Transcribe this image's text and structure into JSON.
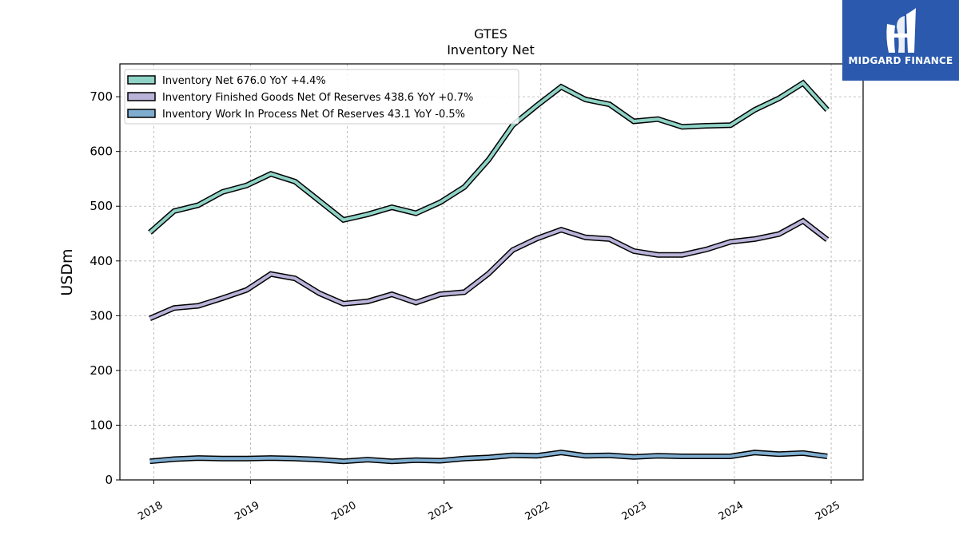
{
  "brand": {
    "name": "MIDGARD FINANCE"
  },
  "chart_data": {
    "type": "line",
    "title": "GTES",
    "subtitle": "Inventory Net",
    "xlabel": "",
    "ylabel": "USDm",
    "ylim": [
      0,
      760
    ],
    "yticks": [
      0,
      100,
      200,
      300,
      400,
      500,
      600,
      700
    ],
    "xlim": [
      2017.65,
      2025.33
    ],
    "xticks": [
      "2018",
      "2019",
      "2020",
      "2021",
      "2022",
      "2023",
      "2024",
      "2025"
    ],
    "grid": true,
    "legend_position": "top-left",
    "x": [
      2017.96,
      2018.21,
      2018.46,
      2018.71,
      2018.96,
      2019.21,
      2019.46,
      2019.71,
      2019.96,
      2020.21,
      2020.46,
      2020.71,
      2020.96,
      2021.21,
      2021.46,
      2021.71,
      2021.96,
      2022.21,
      2022.46,
      2022.71,
      2022.96,
      2023.21,
      2023.46,
      2023.71,
      2023.96,
      2024.21,
      2024.46,
      2024.71,
      2024.96
    ],
    "series": [
      {
        "name": "Inventory Net",
        "legend_label": "Inventory Net  676.0 YoY +4.4%",
        "color": "#8fd3c6",
        "values": [
          452,
          491,
          502,
          526,
          538,
          559,
          545,
          510,
          475,
          485,
          498,
          487,
          507,
          535,
          585,
          648,
          684,
          718,
          695,
          686,
          655,
          659,
          645,
          647,
          648,
          676,
          697,
          725,
          676
        ]
      },
      {
        "name": "Inventory Finished Goods Net Of Reserves",
        "legend_label": "Inventory Finished Goods Net Of Reserves  438.6 YoY +0.7%",
        "color": "#b9b3d9",
        "values": [
          295,
          314,
          318,
          332,
          347,
          376,
          368,
          341,
          322,
          326,
          339,
          324,
          339,
          343,
          377,
          420,
          441,
          457,
          443,
          440,
          418,
          411,
          411,
          421,
          435,
          440,
          449,
          473,
          439
        ]
      },
      {
        "name": "Inventory Work In Process Net Of Reserves",
        "legend_label": "Inventory Work In Process Net Of Reserves  43.1 YoY -0.5%",
        "color": "#7fadd0",
        "values": [
          34,
          38,
          40,
          39,
          39,
          40,
          39,
          37,
          34,
          37,
          34,
          36,
          35,
          39,
          41,
          45,
          44,
          50,
          44,
          45,
          42,
          44,
          43,
          43,
          43,
          50,
          47,
          49,
          43
        ]
      }
    ]
  }
}
